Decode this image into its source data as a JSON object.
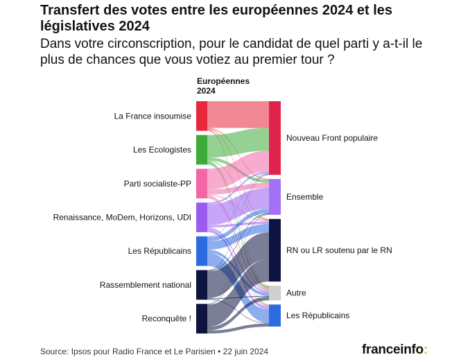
{
  "header": {
    "title": "Transfert des votes entre les européennes 2024 et les législatives 2024",
    "subtitle": "Dans votre circonscription, pour le candidat de quel parti y a-t-il le plus de chances que vous votiez au premier tour ?"
  },
  "chart_data": {
    "type": "sankey",
    "source_column_label": "Européennes 2024",
    "sources": [
      {
        "name": "La France insoumise",
        "color": "#e8273a"
      },
      {
        "name": "Les Ecologistes",
        "color": "#3cab3a"
      },
      {
        "name": "Parti socialiste-PP",
        "color": "#f266a8"
      },
      {
        "name": "Renaissance, MoDem, Horizons, UDI",
        "color": "#9a5cf0"
      },
      {
        "name": "Les Républicains",
        "color": "#2d6be0"
      },
      {
        "name": "Rassemblement national",
        "color": "#0d1440"
      },
      {
        "name": "Reconquête !",
        "color": "#0d1440"
      }
    ],
    "targets": [
      {
        "name": "Nouveau Front populaire",
        "color": "#e0234a"
      },
      {
        "name": "Ensemble",
        "color": "#a470f5"
      },
      {
        "name": "RN ou LR soutenu par le RN",
        "color": "#0d1440"
      },
      {
        "name": "Autre",
        "color": "#cfcfcf"
      },
      {
        "name": "Les Républicains",
        "color": "#2d6be0"
      }
    ],
    "flows": [
      {
        "source": 0,
        "target": 0,
        "value": 90
      },
      {
        "source": 0,
        "target": 1,
        "value": 3
      },
      {
        "source": 0,
        "target": 2,
        "value": 3
      },
      {
        "source": 0,
        "target": 3,
        "value": 3
      },
      {
        "source": 0,
        "target": 4,
        "value": 1
      },
      {
        "source": 1,
        "target": 0,
        "value": 76
      },
      {
        "source": 1,
        "target": 1,
        "value": 10
      },
      {
        "source": 1,
        "target": 2,
        "value": 3
      },
      {
        "source": 1,
        "target": 3,
        "value": 8
      },
      {
        "source": 1,
        "target": 4,
        "value": 3
      },
      {
        "source": 2,
        "target": 0,
        "value": 70
      },
      {
        "source": 2,
        "target": 1,
        "value": 17
      },
      {
        "source": 2,
        "target": 2,
        "value": 3
      },
      {
        "source": 2,
        "target": 3,
        "value": 7
      },
      {
        "source": 2,
        "target": 4,
        "value": 3
      },
      {
        "source": 3,
        "target": 0,
        "value": 6
      },
      {
        "source": 3,
        "target": 1,
        "value": 70
      },
      {
        "source": 3,
        "target": 2,
        "value": 8
      },
      {
        "source": 3,
        "target": 3,
        "value": 6
      },
      {
        "source": 3,
        "target": 4,
        "value": 10
      },
      {
        "source": 4,
        "target": 0,
        "value": 2
      },
      {
        "source": 4,
        "target": 1,
        "value": 15
      },
      {
        "source": 4,
        "target": 2,
        "value": 28
      },
      {
        "source": 4,
        "target": 3,
        "value": 10
      },
      {
        "source": 4,
        "target": 4,
        "value": 45
      },
      {
        "source": 5,
        "target": 0,
        "value": 2
      },
      {
        "source": 5,
        "target": 1,
        "value": 3
      },
      {
        "source": 5,
        "target": 2,
        "value": 90
      },
      {
        "source": 5,
        "target": 3,
        "value": 3
      },
      {
        "source": 5,
        "target": 4,
        "value": 2
      },
      {
        "source": 6,
        "target": 0,
        "value": 1
      },
      {
        "source": 6,
        "target": 1,
        "value": 2
      },
      {
        "source": 6,
        "target": 2,
        "value": 75
      },
      {
        "source": 6,
        "target": 3,
        "value": 12
      },
      {
        "source": 6,
        "target": 4,
        "value": 10
      }
    ]
  },
  "footer": {
    "source": "Source: Ipsos pour Radio France et Le Parisien • 22 juin 2024",
    "logo_text": "franceinfo",
    "logo_mark": ":"
  }
}
